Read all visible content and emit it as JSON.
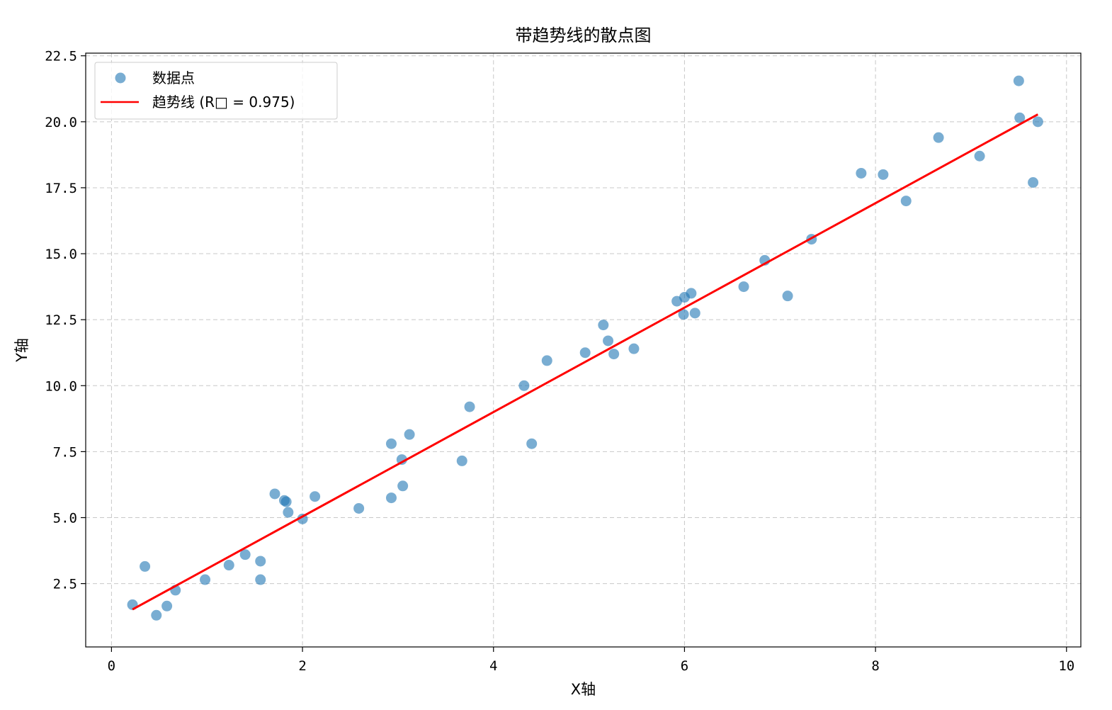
{
  "chart_data": {
    "type": "scatter",
    "title": "带趋势线的散点图",
    "xlabel": "X轴",
    "ylabel": "Y轴",
    "xlim": [
      -0.27,
      10.15
    ],
    "ylim": [
      0.1,
      22.6
    ],
    "xticks": [
      0,
      2,
      4,
      6,
      8,
      10
    ],
    "xtick_labels": [
      "0",
      "2",
      "4",
      "6",
      "8",
      "10"
    ],
    "yticks": [
      2.5,
      5.0,
      7.5,
      10.0,
      12.5,
      15.0,
      17.5,
      20.0,
      22.5
    ],
    "ytick_labels": [
      "2.5",
      "5.0",
      "7.5",
      "10.0",
      "12.5",
      "15.0",
      "17.5",
      "20.0",
      "22.5"
    ],
    "grid": true,
    "legend_position": "top-left",
    "series": [
      {
        "name": "数据点",
        "kind": "scatter",
        "color": "#1f77b4",
        "alpha": 0.6,
        "points": [
          [
            0.22,
            1.7
          ],
          [
            0.35,
            3.15
          ],
          [
            0.47,
            1.3
          ],
          [
            0.58,
            1.65
          ],
          [
            0.67,
            2.25
          ],
          [
            0.98,
            2.65
          ],
          [
            1.23,
            3.2
          ],
          [
            1.4,
            3.6
          ],
          [
            1.56,
            3.35
          ],
          [
            1.56,
            2.65
          ],
          [
            1.71,
            5.9
          ],
          [
            1.81,
            5.65
          ],
          [
            1.83,
            5.6
          ],
          [
            1.85,
            5.2
          ],
          [
            2.0,
            4.95
          ],
          [
            2.13,
            5.8
          ],
          [
            2.59,
            5.35
          ],
          [
            2.93,
            7.8
          ],
          [
            2.93,
            5.75
          ],
          [
            3.04,
            7.2
          ],
          [
            3.05,
            6.2
          ],
          [
            3.12,
            8.15
          ],
          [
            3.67,
            7.15
          ],
          [
            3.75,
            9.2
          ],
          [
            4.32,
            10.0
          ],
          [
            4.4,
            7.8
          ],
          [
            4.56,
            10.95
          ],
          [
            4.96,
            11.25
          ],
          [
            5.15,
            12.3
          ],
          [
            5.2,
            11.7
          ],
          [
            5.26,
            11.2
          ],
          [
            5.47,
            11.4
          ],
          [
            5.92,
            13.2
          ],
          [
            5.99,
            12.7
          ],
          [
            6.0,
            13.35
          ],
          [
            6.07,
            13.5
          ],
          [
            6.11,
            12.75
          ],
          [
            6.62,
            13.75
          ],
          [
            6.84,
            14.75
          ],
          [
            7.08,
            13.4
          ],
          [
            7.33,
            15.55
          ],
          [
            7.85,
            18.05
          ],
          [
            8.08,
            18.0
          ],
          [
            8.32,
            17.0
          ],
          [
            8.66,
            19.4
          ],
          [
            9.09,
            18.7
          ],
          [
            9.5,
            21.55
          ],
          [
            9.51,
            20.15
          ],
          [
            9.65,
            17.7
          ],
          [
            9.7,
            20.0
          ]
        ]
      },
      {
        "name": "趋势线 (R□ = 0.975)",
        "kind": "line",
        "color": "#ff0000",
        "points": [
          [
            0.22,
            1.52
          ],
          [
            9.7,
            20.28
          ]
        ]
      }
    ]
  }
}
